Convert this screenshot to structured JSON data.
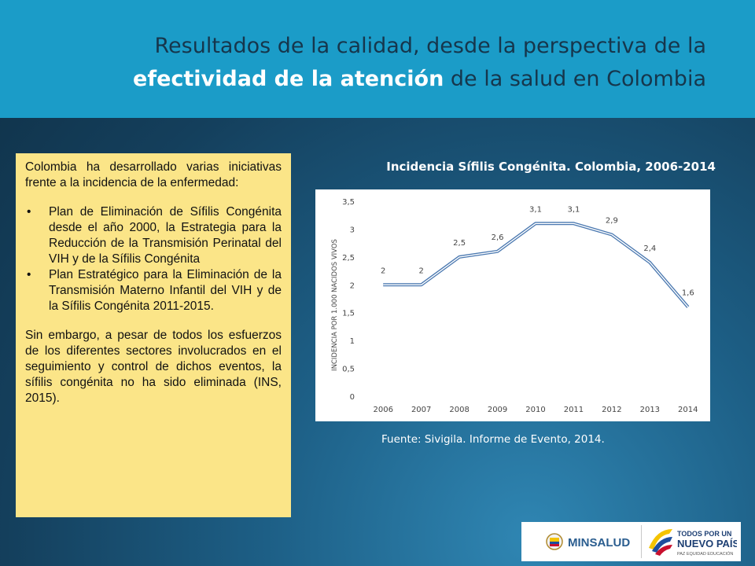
{
  "header": {
    "title_line1": "Resultados de la calidad, desde la perspectiva de la",
    "title_highlight": "efectividad de la atención",
    "title_rest": "de la salud en Colombia"
  },
  "textbox": {
    "intro": "Colombia ha desarrollado varias iniciativas frente a la incidencia de la enfermedad:",
    "bullets": [
      "Plan de Eliminación de Sífilis Congénita desde el año 2000, la Estrategia para la Reducción de la Transmisión Perinatal del VIH y de la Sífilis Congénita",
      "Plan Estratégico para la Eliminación de la Transmisión Materno Infantil del VIH y de la Sífilis Congénita 2011-2015."
    ],
    "conclusion": "Sin embargo, a pesar de todos los esfuerzos de los diferentes sectores involucrados en el seguimiento y control de dichos eventos, la sífilis congénita no ha sido eliminada (INS, 2015)."
  },
  "chart_data": {
    "type": "line",
    "title": "Incidencia Sífilis Congénita. Colombia, 2006-2014",
    "ylabel": "INCIDENCIA POR 1.000 NACIDOS VIVOS",
    "xlabel": "",
    "x": [
      "2006",
      "2007",
      "2008",
      "2009",
      "2010",
      "2011",
      "2012",
      "2013",
      "2014"
    ],
    "values": [
      2,
      2,
      2.5,
      2.6,
      3.1,
      3.1,
      2.9,
      2.4,
      1.6
    ],
    "data_labels": [
      "2",
      "2",
      "2,5",
      "2,6",
      "3,1",
      "3,1",
      "2,9",
      "2,4",
      "1,6"
    ],
    "y_ticks": [
      0,
      0.5,
      1,
      1.5,
      2,
      2.5,
      3,
      3.5
    ],
    "y_tick_labels": [
      "0",
      "0,5",
      "1",
      "1,5",
      "2",
      "2,5",
      "3",
      "3,5"
    ],
    "ylim": [
      0,
      3.5
    ],
    "grid": false,
    "legend": "none",
    "line_color": "#4a78b0"
  },
  "source": "Fuente: Sivigila. Informe de Evento, 2014.",
  "logos": {
    "minsalud": "MINSALUD",
    "pais_line1": "TODOS POR UN",
    "pais_line2": "NUEVO PAÍS",
    "pais_tagline": "PAZ EQUIDAD EDUCACIÓN"
  },
  "colors": {
    "header_bg": "#1b9cc8",
    "title_dark": "#16364c",
    "textbox_bg": "#fbe588"
  }
}
